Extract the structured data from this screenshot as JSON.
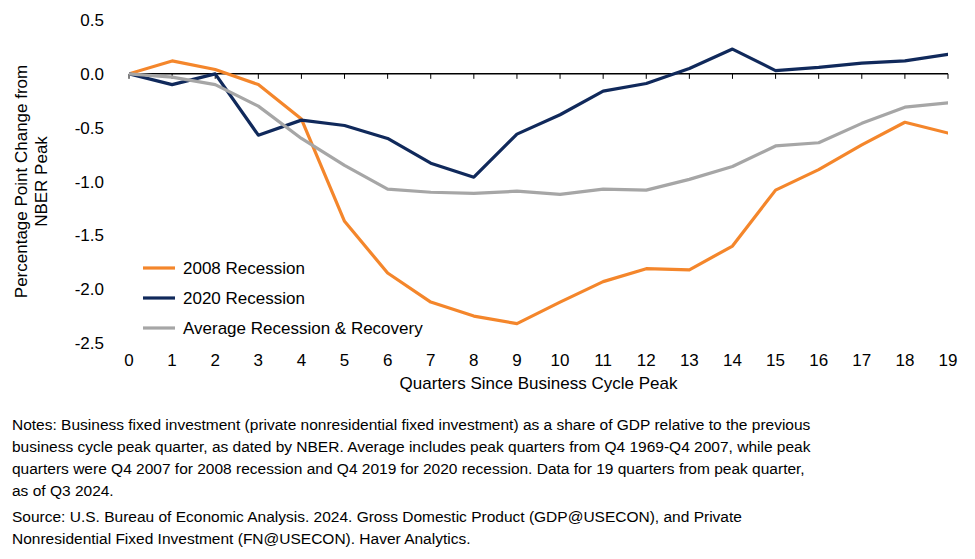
{
  "chart_data": {
    "type": "line",
    "x_label": "Quarters Since Business Cycle Peak",
    "y_label": "Percentage Point Change from NBER Peak",
    "x": [
      0,
      1,
      2,
      3,
      4,
      5,
      6,
      7,
      8,
      9,
      10,
      11,
      12,
      13,
      14,
      15,
      16,
      17,
      18,
      19
    ],
    "xlim": [
      0,
      19
    ],
    "xticks": [
      0,
      1,
      2,
      3,
      4,
      5,
      6,
      7,
      8,
      9,
      10,
      11,
      12,
      13,
      14,
      15,
      16,
      17,
      18,
      19
    ],
    "ylim": [
      -2.5,
      0.5
    ],
    "yticks": [
      0.5,
      {
        "value": 0,
        "label": "0.0"
      },
      -0.5,
      {
        "value": -1,
        "label": "-1.0"
      },
      -1.5,
      {
        "value": -2,
        "label": "-2.0"
      },
      -2.5
    ],
    "grid": false,
    "legend": "lower left",
    "series": [
      {
        "name": "2008 Recession",
        "color": "#f4862b",
        "values": [
          0,
          0.12,
          0.04,
          -0.1,
          -0.42,
          -1.37,
          -1.85,
          -2.12,
          -2.25,
          -2.32,
          -2.12,
          -1.93,
          -1.81,
          -1.82,
          -1.6,
          -1.08,
          -0.89,
          -0.66,
          -0.45,
          -0.55
        ]
      },
      {
        "name": "2020 Recession",
        "color": "#10295b",
        "values": [
          0,
          -0.1,
          0,
          -0.57,
          -0.43,
          -0.48,
          -0.6,
          -0.83,
          -0.96,
          -0.56,
          -0.38,
          -0.16,
          -0.09,
          0.05,
          0.23,
          0.03,
          0.06,
          0.1,
          0.12,
          0.18
        ]
      },
      {
        "name": "Average Recession & Recovery",
        "color": "#a6a6a6",
        "values": [
          0,
          -0.03,
          -0.1,
          -0.3,
          -0.6,
          -0.85,
          -1.07,
          -1.1,
          -1.11,
          -1.09,
          -1.12,
          -1.07,
          -1.08,
          -0.98,
          -0.86,
          -0.67,
          -0.64,
          -0.46,
          -0.31,
          -0.27
        ]
      }
    ],
    "notes": [
      "Notes: Business fixed investment (private nonresidential fixed investment) as a share of GDP relative to the previous",
      "business cycle peak quarter, as dated by NBER. Average includes peak quarters from Q4 1969-Q4 2007, while peak",
      "quarters were Q4 2007 for 2008 recession and Q4 2019 for 2020 recession. Data for 19 quarters from peak quarter,",
      "as of Q3 2024."
    ],
    "source": [
      "Source: U.S. Bureau of Economic Analysis. 2024. Gross Domestic Product (GDP@USECON), and Private",
      "Nonresidential Fixed Investment (FN@USECON). Haver Analytics."
    ]
  }
}
